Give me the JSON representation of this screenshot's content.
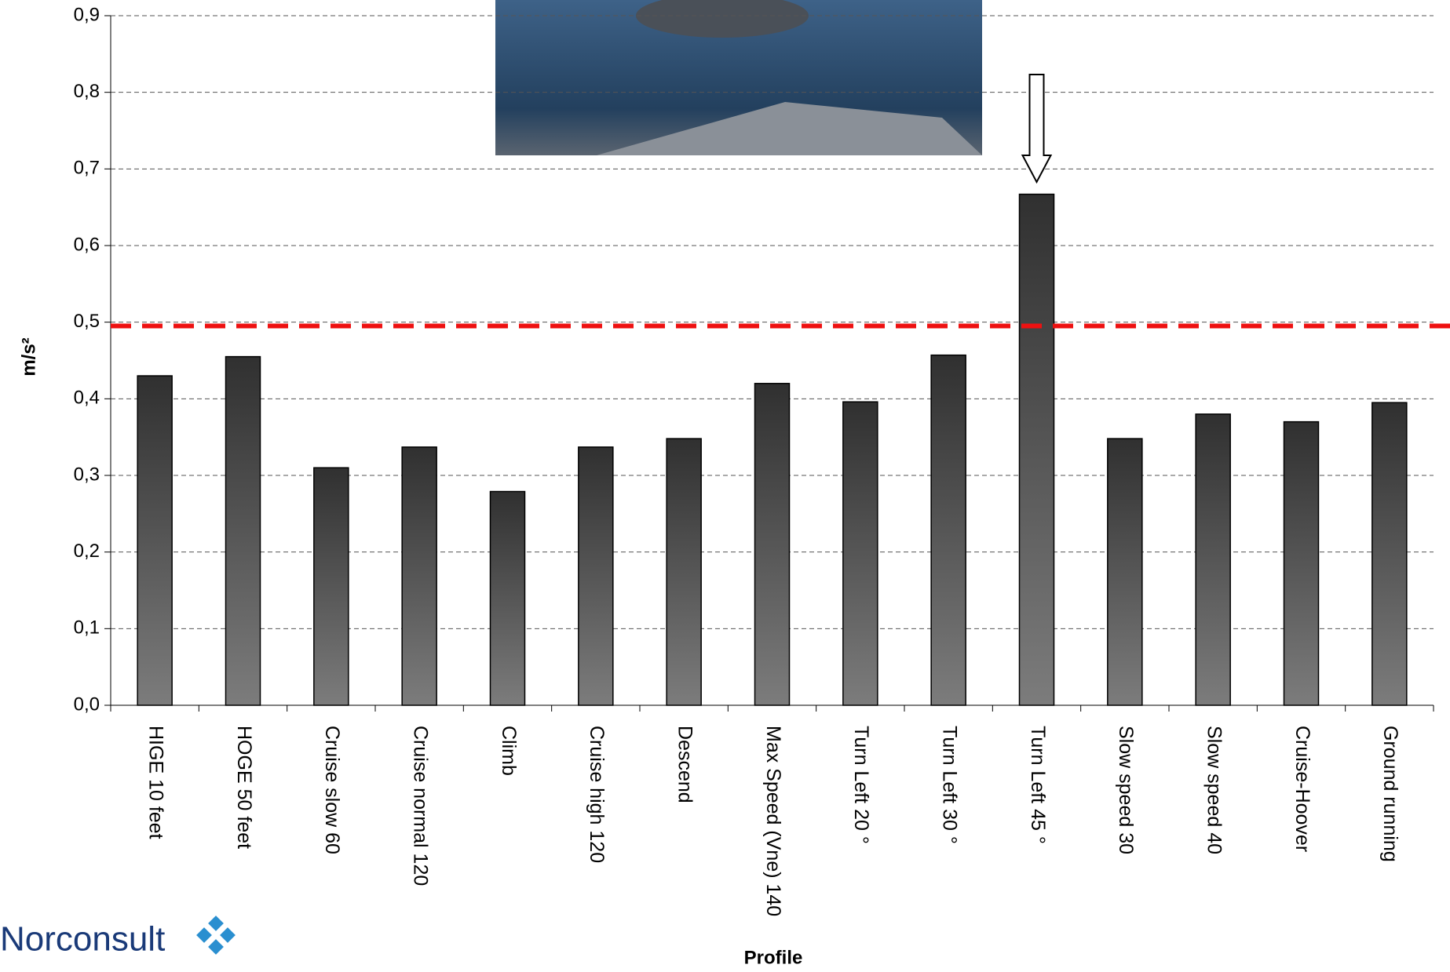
{
  "chart_data": {
    "type": "bar",
    "y_label": "m/s²",
    "x_label": "Profile",
    "categories": [
      "HIGE 10 feet",
      "HOGE 50 feet",
      "Cruise slow 60",
      "Cruise normal 120",
      "Climb",
      "Cruise high 120",
      "Descend",
      "Max Speed (Vne) 140",
      "Turn Left 20 °",
      "Turn Left 30 °",
      "Turn Left 45 °",
      "Slow speed 30",
      "Slow speed 40",
      "Cruise-Hoover",
      "Ground running"
    ],
    "values": [
      0.43,
      0.455,
      0.31,
      0.337,
      0.279,
      0.337,
      0.348,
      0.42,
      0.396,
      0.457,
      0.667,
      0.348,
      0.38,
      0.37,
      0.395
    ],
    "color": "#333333",
    "ylim": [
      0,
      0.9
    ],
    "yticks": [
      {
        "value": 0,
        "label": "0,0"
      },
      {
        "value": 0.1,
        "label": "0,1"
      },
      {
        "value": 0.2,
        "label": "0,2"
      },
      {
        "value": 0.3,
        "label": "0,3"
      },
      {
        "value": 0.4,
        "label": "0,4"
      },
      {
        "value": 0.5,
        "label": "0,5"
      },
      {
        "value": 0.6,
        "label": "0,6"
      },
      {
        "value": 0.7,
        "label": "0,7"
      },
      {
        "value": 0.8,
        "label": "0,8"
      },
      {
        "value": 0.9,
        "label": "0,9"
      }
    ],
    "grid": true,
    "threshold": 0.495,
    "threshold_color": "#ee1111",
    "logo": "Norconsult"
  }
}
